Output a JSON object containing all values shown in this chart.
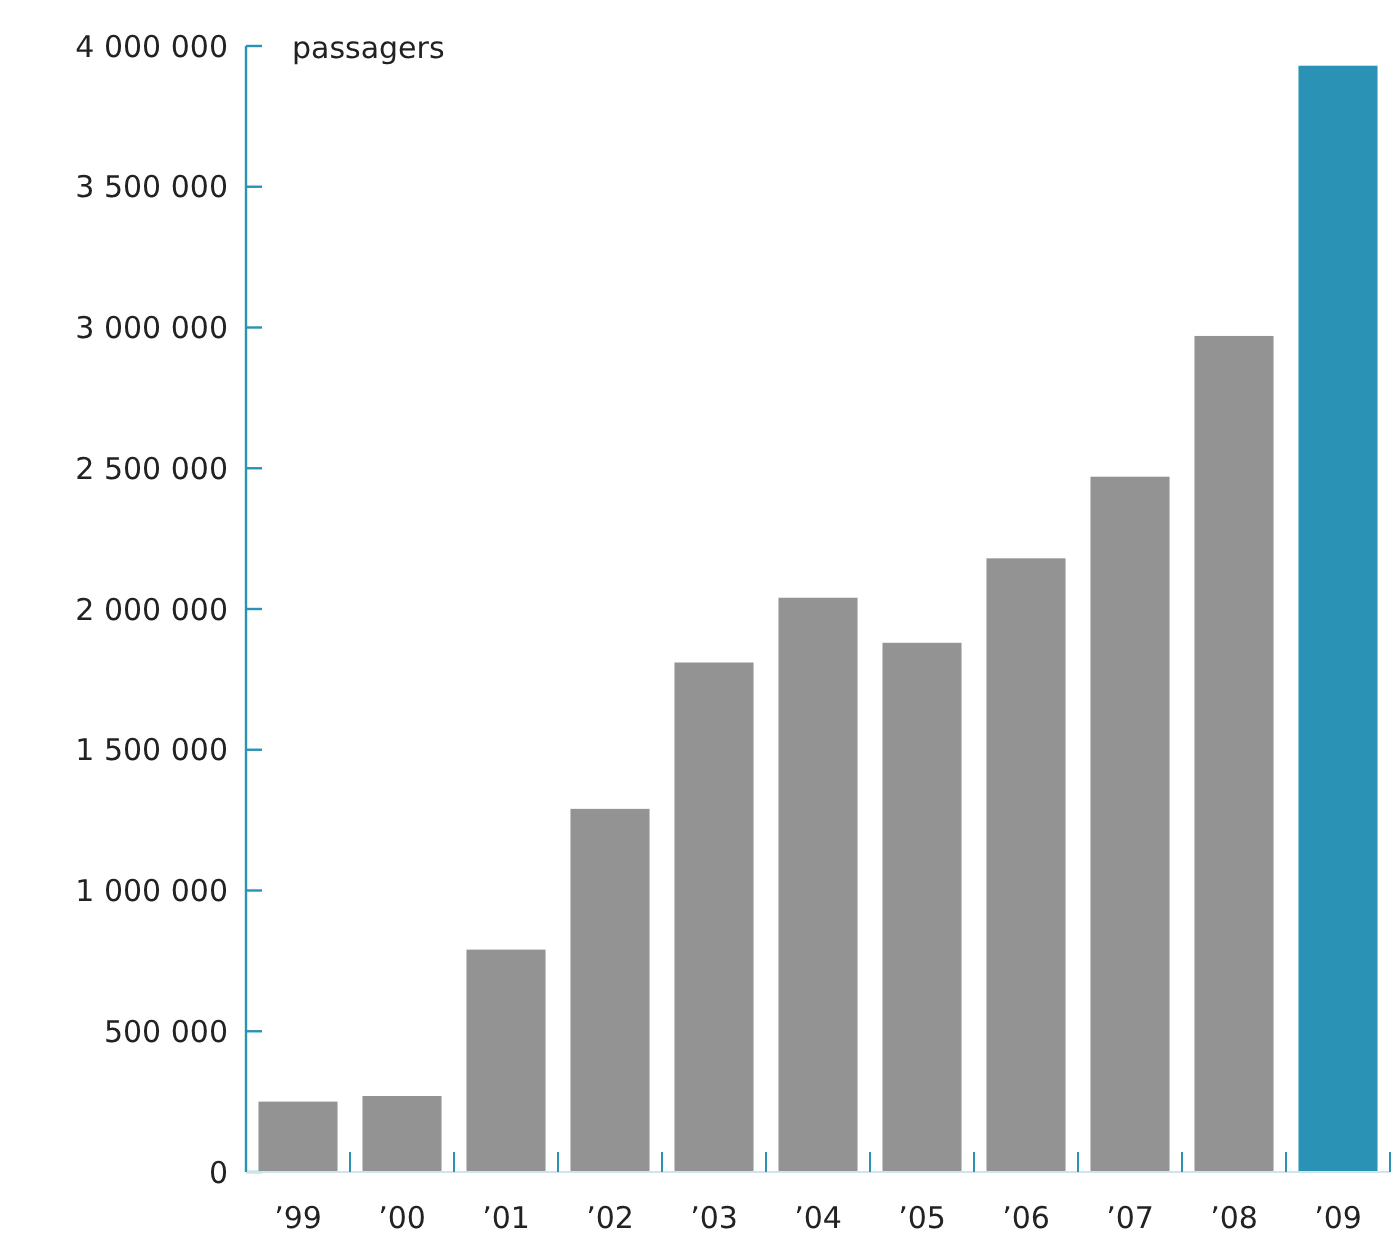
{
  "chart_data": {
    "type": "bar",
    "ylabel": "passagers",
    "categories": [
      "’99",
      "’00",
      "’01",
      "’02",
      "’03",
      "’04",
      "’05",
      "’06",
      "’07",
      "’08",
      "’09"
    ],
    "values": [
      250000,
      270000,
      790000,
      1290000,
      1810000,
      2040000,
      1880000,
      2180000,
      2470000,
      2970000,
      3930000
    ],
    "colors": [
      "#939393",
      "#939393",
      "#939393",
      "#939393",
      "#939393",
      "#939393",
      "#939393",
      "#939393",
      "#939393",
      "#939393",
      "#2a93b5"
    ],
    "ylim": [
      0,
      4000000
    ],
    "yticks": [
      {
        "value": 0,
        "label": "0"
      },
      {
        "value": 500000,
        "label": "500 000"
      },
      {
        "value": 1000000,
        "label": "1 000 000"
      },
      {
        "value": 1500000,
        "label": "1 500 000"
      },
      {
        "value": 2000000,
        "label": "2 000 000"
      },
      {
        "value": 2500000,
        "label": "2 500 000"
      },
      {
        "value": 3000000,
        "label": "3 000 000"
      },
      {
        "value": 3500000,
        "label": "3 500 000"
      },
      {
        "value": 4000000,
        "label": "4 000 000"
      }
    ],
    "grid": false
  }
}
